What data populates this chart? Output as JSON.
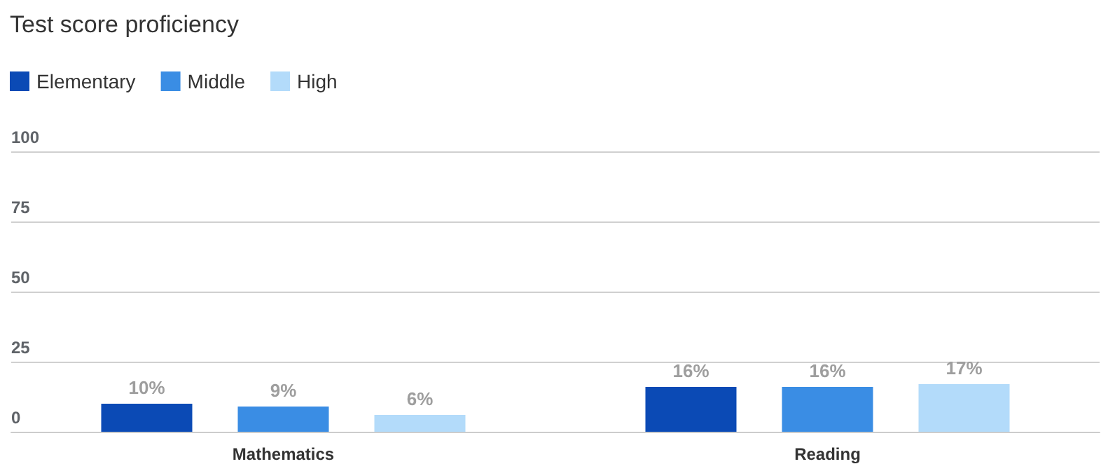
{
  "chart_data": {
    "type": "bar",
    "title": "Test score proficiency",
    "categories": [
      "Mathematics",
      "Reading"
    ],
    "series": [
      {
        "name": "Elementary",
        "color": "#0b4ab5",
        "values": [
          10,
          16
        ],
        "value_labels": [
          "10%",
          "16%"
        ]
      },
      {
        "name": "Middle",
        "color": "#3a8de4",
        "values": [
          9,
          16
        ],
        "value_labels": [
          "9%",
          "16%"
        ]
      },
      {
        "name": "High",
        "color": "#b3dbfa",
        "values": [
          6,
          17
        ],
        "value_labels": [
          "6%",
          "17%"
        ]
      }
    ],
    "ylim": [
      0,
      100
    ],
    "yticks": [
      0,
      25,
      50,
      75,
      100
    ],
    "grid": "y",
    "legend": "top left"
  }
}
